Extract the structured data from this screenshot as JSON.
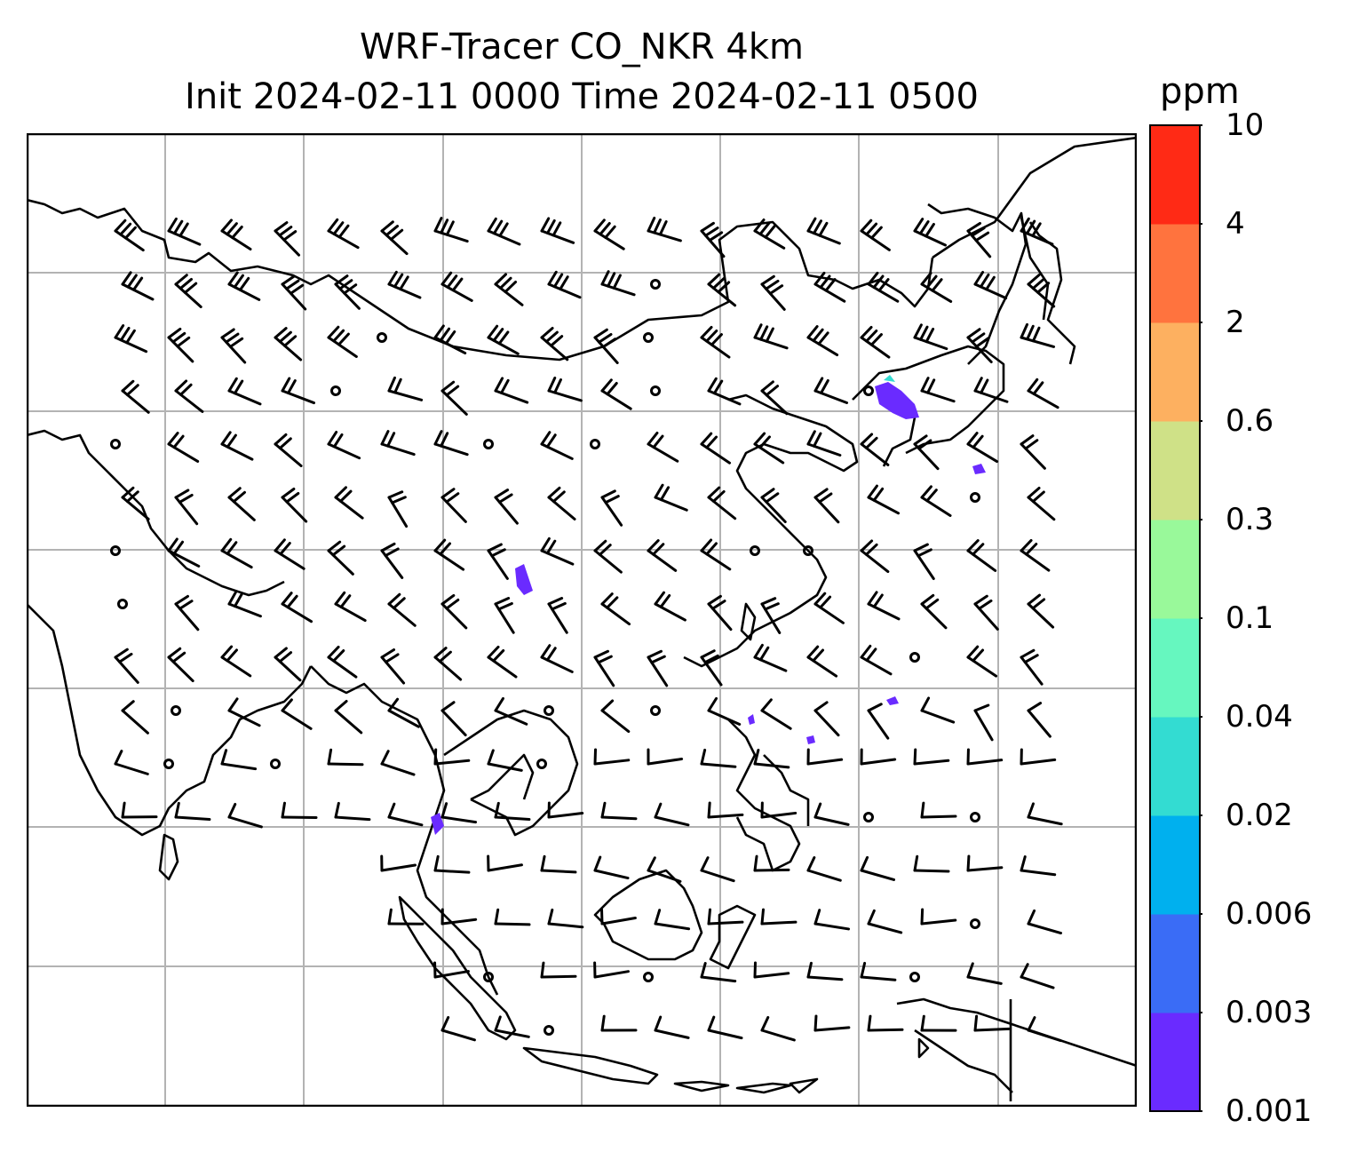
{
  "figure": {
    "title_line1": "WRF-Tracer CO_NKR 4km",
    "title_line2": "Init 2024-02-11 0000 Time 2024-02-11 0500"
  },
  "colorbar": {
    "unit": "ppm",
    "levels": [
      "0.001",
      "0.003",
      "0.006",
      "0.02",
      "0.04",
      "0.1",
      "0.3",
      "0.6",
      "2",
      "4",
      "10"
    ],
    "colors": [
      "#6a2bff",
      "#3a6cf6",
      "#00b0ee",
      "#33dcd2",
      "#66f7bf",
      "#99f99a",
      "#cfe187",
      "#fdb060",
      "#ff733e",
      "#ff2a15"
    ]
  },
  "map": {
    "gridlines": true,
    "wind_barbs": "black",
    "coastline_color": "#000000",
    "tracer_color": "#6a2bff"
  }
}
